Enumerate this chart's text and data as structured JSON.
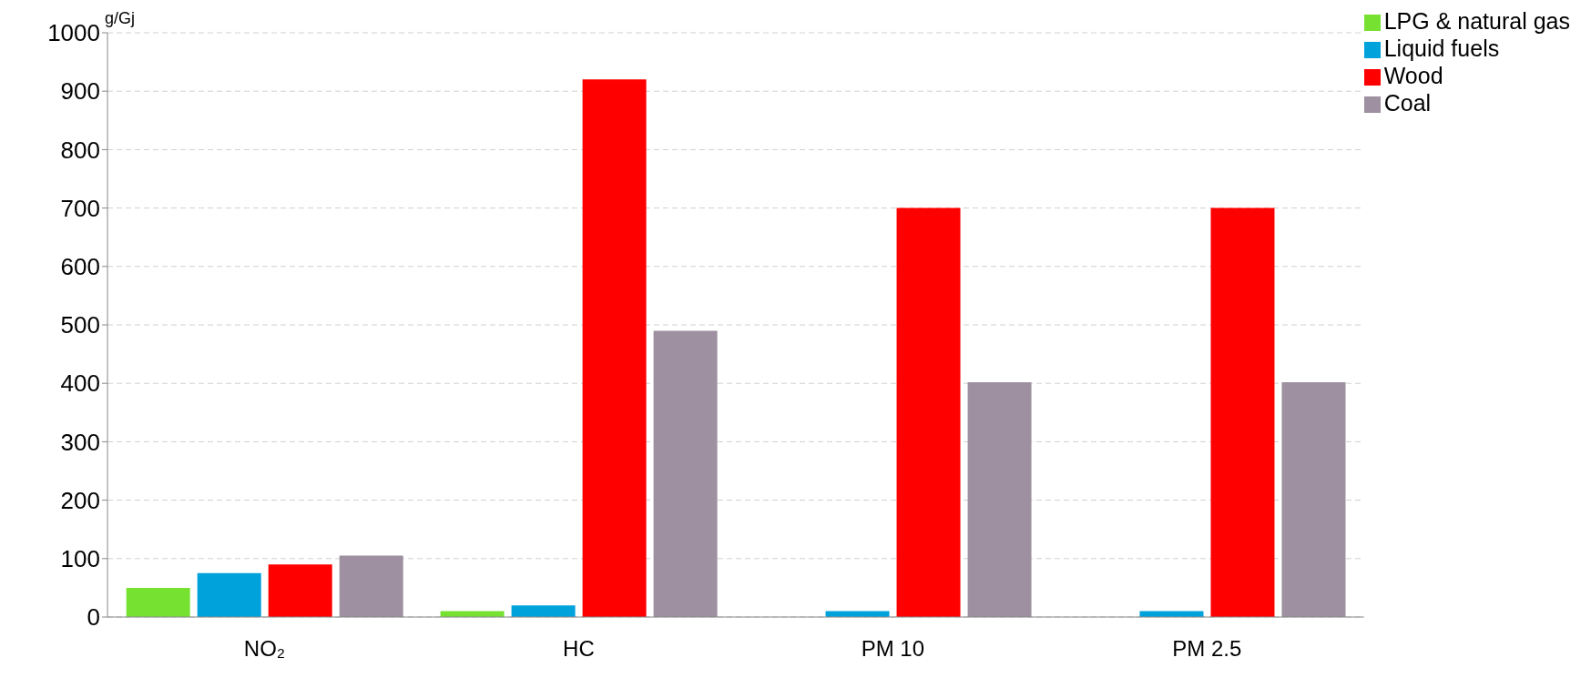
{
  "chart_data": {
    "type": "bar",
    "ylabel": "g/Gj",
    "categories": [
      "NO₂",
      "HC",
      "PM 10",
      "PM 2.5"
    ],
    "series": [
      {
        "name": "LPG & natural gas",
        "color": "#77e132",
        "values": [
          50,
          10,
          null,
          null
        ]
      },
      {
        "name": "Liquid fuels",
        "color": "#00a2db",
        "values": [
          75,
          20,
          10,
          10
        ]
      },
      {
        "name": "Wood",
        "color": "#ff0000",
        "values": [
          90,
          920,
          700,
          700
        ]
      },
      {
        "name": "Coal",
        "color": "#9e90a0",
        "values": [
          105,
          490,
          402,
          402
        ]
      }
    ],
    "ylim": [
      0,
      1000
    ],
    "yticks": [
      0,
      100,
      200,
      300,
      400,
      500,
      600,
      700,
      800,
      900,
      1000
    ],
    "grid": "y",
    "legend": "top right"
  }
}
